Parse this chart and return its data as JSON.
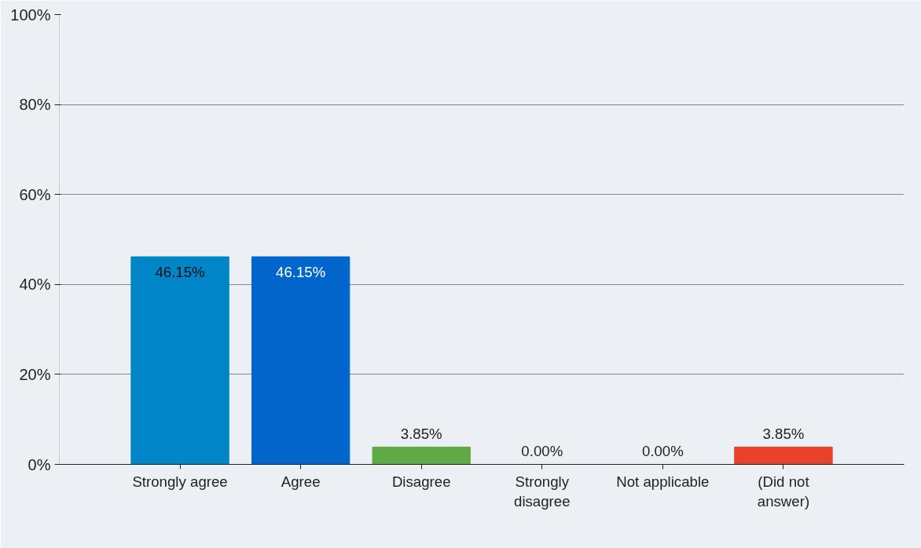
{
  "chart_data": {
    "type": "bar",
    "categories": [
      "Strongly agree",
      "Agree",
      "Disagree",
      "Strongly\ndisagree",
      "Not applicable",
      "(Did not\nanswer)"
    ],
    "values": [
      46.15,
      46.15,
      3.85,
      0.0,
      0.0,
      3.85
    ],
    "colors": [
      "#0085c8",
      "#0066cc",
      "#5faa45",
      "#8064a2",
      "#f79646",
      "#e8432a"
    ],
    "ylim": [
      0,
      100
    ],
    "yticks": [
      {
        "value": 0,
        "label": "0%"
      },
      {
        "value": 20,
        "label": "20%"
      },
      {
        "value": 40,
        "label": "40%"
      },
      {
        "value": 60,
        "label": "60%"
      },
      {
        "value": 80,
        "label": "80%"
      },
      {
        "value": 100,
        "label": "100%"
      }
    ],
    "value_labels": [
      "46.15%",
      "46.15%",
      "3.85%",
      "0.00%",
      "0.00%",
      "3.85%"
    ],
    "grid": "y"
  }
}
